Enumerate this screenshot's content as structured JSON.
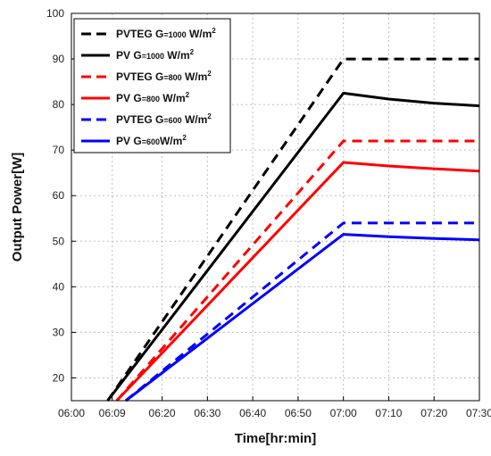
{
  "chart_data": {
    "type": "line",
    "xlabel": "Time[hr:min]",
    "ylabel": "Output Power[W]",
    "x_ticks": [
      "06:00",
      "06:09",
      "06:20",
      "06:30",
      "06:40",
      "06:50",
      "07:00",
      "07:10",
      "07:20",
      "07:30"
    ],
    "x_tick_minutes": [
      0,
      9,
      20,
      30,
      40,
      50,
      60,
      70,
      80,
      90
    ],
    "xlim_minutes": [
      0,
      90
    ],
    "ylim": [
      15,
      100
    ],
    "y_ticks": [
      20,
      30,
      40,
      50,
      60,
      70,
      80,
      90,
      100
    ],
    "grid": true,
    "legend_position": "top-left",
    "series": [
      {
        "name": "PVTEG G=1000 W/m²",
        "color": "#000000",
        "dash": true,
        "points": [
          [
            8,
            15
          ],
          [
            60,
            90
          ],
          [
            90,
            90
          ]
        ]
      },
      {
        "name": "PV G=1000 W/m²",
        "color": "#000000",
        "dash": false,
        "points": [
          [
            8,
            15
          ],
          [
            60,
            82.5
          ],
          [
            70,
            81.2
          ],
          [
            80,
            80.3
          ],
          [
            90,
            79.7
          ]
        ]
      },
      {
        "name": "PVTEG G=800 W/m²",
        "color": "#ff0000",
        "dash": true,
        "points": [
          [
            10,
            15
          ],
          [
            60,
            72
          ],
          [
            90,
            72
          ]
        ]
      },
      {
        "name": "PV G=800 W/m²",
        "color": "#ff0000",
        "dash": false,
        "points": [
          [
            10,
            15
          ],
          [
            60,
            67.3
          ],
          [
            70,
            66.5
          ],
          [
            80,
            65.9
          ],
          [
            90,
            65.4
          ]
        ]
      },
      {
        "name": "PVTEG G=600W/m²",
        "color": "#0000ff",
        "dash": true,
        "points": [
          [
            12,
            15
          ],
          [
            60,
            54
          ],
          [
            90,
            54
          ]
        ]
      },
      {
        "name": "PV G=600W/m²",
        "color": "#0000ff",
        "dash": false,
        "points": [
          [
            12,
            15
          ],
          [
            60,
            51.5
          ],
          [
            70,
            51
          ],
          [
            80,
            50.6
          ],
          [
            90,
            50.3
          ]
        ]
      }
    ]
  },
  "legend": [
    {
      "main": "PVTEG G",
      "sub": "=1000",
      "unit": " W/m",
      "sup": "2"
    },
    {
      "main": "PV G",
      "sub": "=1000",
      "unit": " W/m",
      "sup": "2"
    },
    {
      "main": "PVTEG G",
      "sub": "=800",
      "unit": " W/m",
      "sup": "2"
    },
    {
      "main": "PV G",
      "sub": "=800",
      "unit": " W/m",
      "sup": "2"
    },
    {
      "main": "PVTEG G",
      "sub": "=600",
      "unit": " W/m",
      "sup": "2"
    },
    {
      "main": "PV G",
      "sub": "=600",
      "unit": "W/m",
      "sup": "2"
    }
  ]
}
